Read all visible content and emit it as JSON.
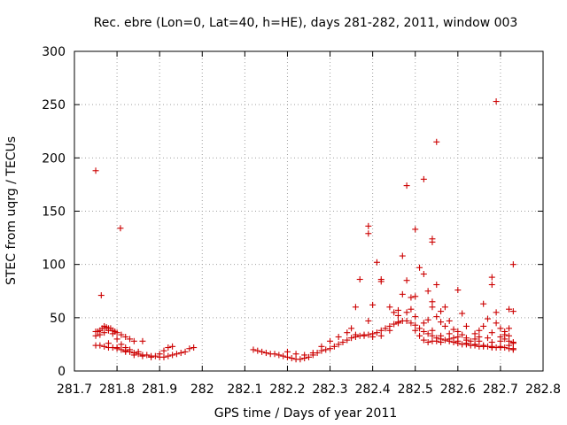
{
  "chart_data": {
    "type": "scatter",
    "title": "Rec. ebre (Lon=0, Lat=40, h=HE), days 281-282, 2011, window 003",
    "xlabel": "GPS time / Days of year 2011",
    "ylabel": "STEC from uqrg / TECUs",
    "xlim": [
      281.7,
      282.8
    ],
    "ylim": [
      0,
      300
    ],
    "x_ticks": [
      281.7,
      281.8,
      281.9,
      282,
      282.1,
      282.2,
      282.3,
      282.4,
      282.5,
      282.6,
      282.7,
      282.8
    ],
    "x_tick_labels": [
      "281.7",
      "281.8",
      "281.9",
      "282",
      "282.1",
      "282.2",
      "282.3",
      "282.4",
      "282.5",
      "282.6",
      "282.7",
      "282.8"
    ],
    "y_ticks": [
      0,
      50,
      100,
      150,
      200,
      250,
      300
    ],
    "y_tick_labels": [
      "0",
      "50",
      "100",
      "150",
      "200",
      "250",
      "300"
    ],
    "grid": true,
    "legend": "none",
    "marker": "plus",
    "color": "#cc0000",
    "series": [
      {
        "points": [
          [
            281.75,
            188
          ],
          [
            281.763,
            71
          ],
          [
            281.808,
            134
          ],
          [
            281.75,
            37
          ],
          [
            281.755,
            37
          ],
          [
            281.76,
            38
          ],
          [
            281.765,
            40
          ],
          [
            281.77,
            42
          ],
          [
            281.775,
            41
          ],
          [
            281.78,
            40
          ],
          [
            281.785,
            40
          ],
          [
            281.79,
            38
          ],
          [
            281.795,
            37
          ],
          [
            281.8,
            36
          ],
          [
            281.81,
            34
          ],
          [
            281.82,
            32
          ],
          [
            281.83,
            30
          ],
          [
            281.84,
            28
          ],
          [
            281.75,
            33
          ],
          [
            281.76,
            34
          ],
          [
            281.77,
            36
          ],
          [
            281.78,
            38
          ],
          [
            281.79,
            35
          ],
          [
            281.8,
            30
          ],
          [
            281.81,
            25
          ],
          [
            281.82,
            22
          ],
          [
            281.83,
            20
          ],
          [
            281.85,
            18
          ],
          [
            281.86,
            28
          ],
          [
            281.75,
            24
          ],
          [
            281.76,
            24
          ],
          [
            281.77,
            23
          ],
          [
            281.78,
            22
          ],
          [
            281.79,
            22
          ],
          [
            281.8,
            21
          ],
          [
            281.81,
            20
          ],
          [
            281.82,
            19
          ],
          [
            281.83,
            18
          ],
          [
            281.84,
            17
          ],
          [
            281.85,
            16
          ],
          [
            281.86,
            15
          ],
          [
            281.87,
            15
          ],
          [
            281.88,
            14
          ],
          [
            281.89,
            14
          ],
          [
            281.9,
            13
          ],
          [
            281.91,
            13
          ],
          [
            281.92,
            14
          ],
          [
            281.93,
            15
          ],
          [
            281.94,
            16
          ],
          [
            281.95,
            17
          ],
          [
            281.96,
            18
          ],
          [
            281.97,
            21
          ],
          [
            281.98,
            22
          ],
          [
            281.78,
            26
          ],
          [
            281.8,
            22
          ],
          [
            281.82,
            18
          ],
          [
            281.84,
            15
          ],
          [
            281.86,
            14
          ],
          [
            281.88,
            13
          ],
          [
            281.9,
            16
          ],
          [
            281.91,
            19
          ],
          [
            281.92,
            22
          ],
          [
            281.93,
            23
          ],
          [
            282.12,
            20
          ],
          [
            282.13,
            19
          ],
          [
            282.14,
            18
          ],
          [
            282.15,
            17
          ],
          [
            282.16,
            16
          ],
          [
            282.17,
            16
          ],
          [
            282.18,
            15
          ],
          [
            282.19,
            14
          ],
          [
            282.2,
            13
          ],
          [
            282.21,
            12
          ],
          [
            282.22,
            11
          ],
          [
            282.23,
            11
          ],
          [
            282.24,
            12
          ],
          [
            282.25,
            13
          ],
          [
            282.26,
            15
          ],
          [
            282.27,
            17
          ],
          [
            282.28,
            19
          ],
          [
            282.29,
            20
          ],
          [
            282.3,
            21
          ],
          [
            282.31,
            23
          ],
          [
            282.32,
            25
          ],
          [
            282.33,
            27
          ],
          [
            282.34,
            29
          ],
          [
            282.35,
            31
          ],
          [
            282.36,
            32
          ],
          [
            282.37,
            33
          ],
          [
            282.38,
            34
          ],
          [
            282.39,
            34
          ],
          [
            282.4,
            35
          ],
          [
            282.41,
            36
          ],
          [
            282.42,
            38
          ],
          [
            282.43,
            40
          ],
          [
            282.44,
            42
          ],
          [
            282.45,
            44
          ],
          [
            282.46,
            46
          ],
          [
            282.47,
            47
          ],
          [
            282.48,
            47
          ],
          [
            282.49,
            45
          ],
          [
            282.5,
            43
          ],
          [
            282.51,
            40
          ],
          [
            282.52,
            37
          ],
          [
            282.53,
            35
          ],
          [
            282.54,
            33
          ],
          [
            282.55,
            31
          ],
          [
            282.56,
            30
          ],
          [
            282.57,
            29
          ],
          [
            282.58,
            28
          ],
          [
            282.59,
            27
          ],
          [
            282.6,
            26
          ],
          [
            282.61,
            25
          ],
          [
            282.62,
            25
          ],
          [
            282.63,
            24
          ],
          [
            282.64,
            24
          ],
          [
            282.65,
            23
          ],
          [
            282.66,
            23
          ],
          [
            282.67,
            23
          ],
          [
            282.68,
            22
          ],
          [
            282.69,
            22
          ],
          [
            282.7,
            22
          ],
          [
            282.71,
            22
          ],
          [
            282.72,
            21
          ],
          [
            282.73,
            21
          ],
          [
            282.2,
            18
          ],
          [
            282.22,
            16
          ],
          [
            282.24,
            15
          ],
          [
            282.26,
            17
          ],
          [
            282.28,
            23
          ],
          [
            282.3,
            28
          ],
          [
            282.32,
            32
          ],
          [
            282.34,
            36
          ],
          [
            282.36,
            34
          ],
          [
            282.38,
            33
          ],
          [
            282.4,
            32
          ],
          [
            282.42,
            33
          ],
          [
            282.44,
            38
          ],
          [
            282.46,
            45
          ],
          [
            282.48,
            55
          ],
          [
            282.5,
            51
          ],
          [
            282.52,
            45
          ],
          [
            282.54,
            38
          ],
          [
            282.56,
            33
          ],
          [
            282.58,
            30
          ],
          [
            282.6,
            28
          ],
          [
            282.62,
            26
          ],
          [
            282.64,
            25
          ],
          [
            282.66,
            24
          ],
          [
            282.68,
            23
          ],
          [
            282.7,
            23
          ],
          [
            282.72,
            24
          ],
          [
            282.35,
            40
          ],
          [
            282.36,
            60
          ],
          [
            282.37,
            86
          ],
          [
            282.39,
            47
          ],
          [
            282.39,
            129
          ],
          [
            282.39,
            136
          ],
          [
            282.4,
            62
          ],
          [
            282.41,
            102
          ],
          [
            282.42,
            86
          ],
          [
            282.42,
            84
          ],
          [
            282.44,
            60
          ],
          [
            282.45,
            55
          ],
          [
            282.46,
            52
          ],
          [
            282.46,
            57
          ],
          [
            282.47,
            72
          ],
          [
            282.47,
            108
          ],
          [
            282.48,
            85
          ],
          [
            282.48,
            174
          ],
          [
            282.49,
            58
          ],
          [
            282.49,
            69
          ],
          [
            282.5,
            133
          ],
          [
            282.5,
            70
          ],
          [
            282.51,
            97
          ],
          [
            282.52,
            180
          ],
          [
            282.52,
            91
          ],
          [
            282.53,
            75
          ],
          [
            282.53,
            48
          ],
          [
            282.54,
            65
          ],
          [
            282.54,
            60
          ],
          [
            282.54,
            121
          ],
          [
            282.54,
            124
          ],
          [
            282.55,
            51
          ],
          [
            282.55,
            81
          ],
          [
            282.55,
            215
          ],
          [
            282.56,
            46
          ],
          [
            282.56,
            56
          ],
          [
            282.57,
            60
          ],
          [
            282.57,
            42
          ],
          [
            282.58,
            47
          ],
          [
            282.59,
            39
          ],
          [
            282.59,
            31
          ],
          [
            282.6,
            76
          ],
          [
            282.6,
            37
          ],
          [
            282.61,
            54
          ],
          [
            282.61,
            34
          ],
          [
            282.62,
            42
          ],
          [
            282.62,
            31
          ],
          [
            282.63,
            28
          ],
          [
            282.64,
            30
          ],
          [
            282.64,
            35
          ],
          [
            282.65,
            38
          ],
          [
            282.65,
            28
          ],
          [
            282.66,
            63
          ],
          [
            282.66,
            42
          ],
          [
            282.67,
            49
          ],
          [
            282.67,
            31
          ],
          [
            282.68,
            88
          ],
          [
            282.68,
            81
          ],
          [
            282.68,
            36
          ],
          [
            282.69,
            253
          ],
          [
            282.69,
            55
          ],
          [
            282.69,
            45
          ],
          [
            282.7,
            40
          ],
          [
            282.7,
            32
          ],
          [
            282.71,
            34
          ],
          [
            282.71,
            30
          ],
          [
            282.72,
            58
          ],
          [
            282.72,
            40
          ],
          [
            282.72,
            28
          ],
          [
            282.73,
            100
          ],
          [
            282.73,
            56
          ],
          [
            282.73,
            27
          ],
          [
            282.73,
            20
          ],
          [
            282.5,
            38
          ],
          [
            282.51,
            33
          ],
          [
            282.52,
            29
          ],
          [
            282.53,
            27
          ],
          [
            282.54,
            28
          ],
          [
            282.55,
            28
          ],
          [
            282.56,
            27
          ],
          [
            282.58,
            35
          ],
          [
            282.6,
            32
          ],
          [
            282.62,
            29
          ],
          [
            282.65,
            32
          ],
          [
            282.68,
            27
          ],
          [
            282.7,
            28
          ],
          [
            282.71,
            37
          ],
          [
            282.72,
            33
          ],
          [
            282.73,
            26
          ]
        ]
      }
    ]
  }
}
